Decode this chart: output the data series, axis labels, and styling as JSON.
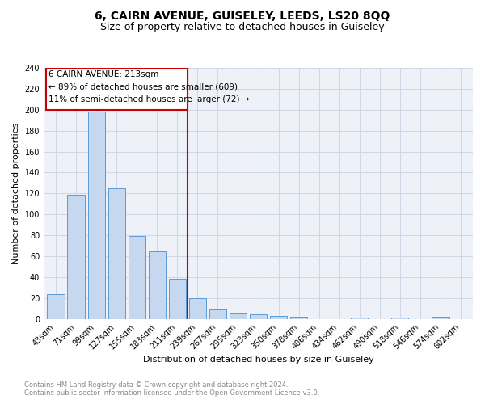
{
  "title": "6, CAIRN AVENUE, GUISELEY, LEEDS, LS20 8QQ",
  "subtitle": "Size of property relative to detached houses in Guiseley",
  "xlabel": "Distribution of detached houses by size in Guiseley",
  "ylabel": "Number of detached properties",
  "bar_labels": [
    "43sqm",
    "71sqm",
    "99sqm",
    "127sqm",
    "155sqm",
    "183sqm",
    "211sqm",
    "239sqm",
    "267sqm",
    "295sqm",
    "323sqm",
    "350sqm",
    "378sqm",
    "406sqm",
    "434sqm",
    "462sqm",
    "490sqm",
    "518sqm",
    "546sqm",
    "574sqm",
    "602sqm"
  ],
  "bar_values": [
    24,
    119,
    198,
    125,
    79,
    65,
    38,
    20,
    9,
    6,
    4,
    3,
    2,
    0,
    0,
    1,
    0,
    1,
    0,
    2,
    0
  ],
  "bar_color": "#c5d8f0",
  "bar_edge_color": "#5b9bd5",
  "property_line_label": "6 CAIRN AVENUE: 213sqm",
  "annotation_lines": [
    "← 89% of detached houses are smaller (609)",
    "11% of semi-detached houses are larger (72) →"
  ],
  "annotation_box_color": "#cc0000",
  "grid_color": "#d0d8e8",
  "background_color": "#eef2f8",
  "ylim": [
    0,
    240
  ],
  "yticks": [
    0,
    20,
    40,
    60,
    80,
    100,
    120,
    140,
    160,
    180,
    200,
    220,
    240
  ],
  "footnote1": "Contains HM Land Registry data © Crown copyright and database right 2024.",
  "footnote2": "Contains public sector information licensed under the Open Government Licence v3.0.",
  "title_fontsize": 10,
  "subtitle_fontsize": 9,
  "axis_label_fontsize": 8,
  "tick_fontsize": 7,
  "annotation_fontsize": 7.5,
  "footnote_fontsize": 6
}
